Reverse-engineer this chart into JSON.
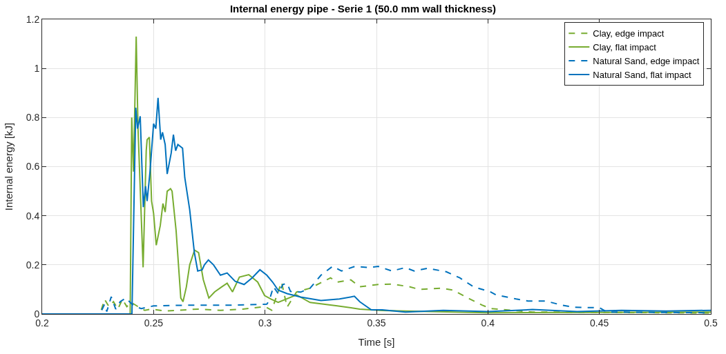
{
  "chart_data": {
    "type": "line",
    "title": "Internal energy pipe - Serie 1 (50.0 mm wall thickness)",
    "xlabel": "Time [s]",
    "ylabel": "Internal energy [kJ]",
    "xlim": [
      0.2,
      0.5
    ],
    "xticks": [
      0.2,
      0.25,
      0.3,
      0.35,
      0.4,
      0.45,
      0.5
    ],
    "ylim": [
      0,
      1.2
    ],
    "yticks": [
      0,
      0.2,
      0.4,
      0.6,
      0.8,
      1,
      1.2
    ],
    "grid": true,
    "legend": "top right",
    "series": [
      {
        "name": "Clay, edge impact",
        "color": "#77ac30",
        "line_style": "dashed",
        "x": [
          0.2,
          0.226,
          0.228,
          0.23,
          0.232,
          0.234,
          0.236,
          0.238,
          0.24,
          0.243,
          0.246,
          0.249,
          0.255,
          0.27,
          0.28,
          0.29,
          0.3,
          0.303,
          0.3074,
          0.3099,
          0.3141,
          0.3202,
          0.3294,
          0.3324,
          0.3385,
          0.3425,
          0.3508,
          0.3569,
          0.3648,
          0.3691,
          0.3791,
          0.3843,
          0.3913,
          0.3974,
          0.4014,
          0.42,
          0.5
        ],
        "values": [
          0,
          0,
          0.06,
          0.03,
          0.05,
          0.02,
          0.06,
          0.03,
          0.047,
          0.03,
          0.015,
          0.02,
          0.012,
          0.02,
          0.015,
          0.02,
          0.03,
          0.015,
          0.13,
          0.028,
          0.089,
          0.105,
          0.147,
          0.13,
          0.139,
          0.111,
          0.12,
          0.122,
          0.111,
          0.1,
          0.105,
          0.097,
          0.064,
          0.036,
          0.022,
          0.008,
          0.004
        ]
      },
      {
        "name": "Clay, flat impact",
        "color": "#77ac30",
        "line_style": "solid",
        "x": [
          0.2,
          0.2395,
          0.2402,
          0.241,
          0.2422,
          0.243,
          0.2453,
          0.2467,
          0.2471,
          0.2481,
          0.2491,
          0.25,
          0.2512,
          0.253,
          0.2542,
          0.2552,
          0.2561,
          0.2576,
          0.2583,
          0.2601,
          0.2622,
          0.2632,
          0.2647,
          0.2662,
          0.2684,
          0.2702,
          0.2723,
          0.2748,
          0.2774,
          0.2805,
          0.283,
          0.2854,
          0.2885,
          0.2927,
          0.2967,
          0.2998,
          0.3028,
          0.3059,
          0.3141,
          0.3202,
          0.3324,
          0.3425,
          0.3526,
          0.4,
          0.5
        ],
        "values": [
          0,
          0,
          0.8,
          0.58,
          1.13,
          0.76,
          0.19,
          0.665,
          0.71,
          0.72,
          0.46,
          0.41,
          0.28,
          0.36,
          0.45,
          0.415,
          0.5,
          0.51,
          0.5,
          0.34,
          0.065,
          0.05,
          0.11,
          0.2,
          0.26,
          0.25,
          0.14,
          0.065,
          0.09,
          0.11,
          0.125,
          0.09,
          0.15,
          0.16,
          0.13,
          0.075,
          0.06,
          0.047,
          0.078,
          0.047,
          0.033,
          0.02,
          0.014,
          0.005,
          0.008
        ]
      },
      {
        "name": "Natural Sand, edge impact",
        "color": "#0072bd",
        "line_style": "dashed",
        "x": [
          0.2,
          0.226,
          0.228,
          0.229,
          0.231,
          0.233,
          0.235,
          0.2375,
          0.2403,
          0.2425,
          0.2445,
          0.25,
          0.2662,
          0.2866,
          0.3008,
          0.3019,
          0.3038,
          0.3059,
          0.308,
          0.3099,
          0.3114,
          0.316,
          0.3202,
          0.3251,
          0.3303,
          0.3343,
          0.3404,
          0.3465,
          0.3508,
          0.3569,
          0.363,
          0.3669,
          0.373,
          0.3813,
          0.3874,
          0.3935,
          0.4014,
          0.4036,
          0.4127,
          0.4179,
          0.4258,
          0.4332,
          0.438,
          0.4502,
          0.4533,
          0.5
        ],
        "values": [
          0,
          0,
          0.04,
          0.01,
          0.07,
          0.02,
          0.05,
          0.065,
          0.04,
          0.028,
          0.022,
          0.033,
          0.036,
          0.036,
          0.04,
          0.055,
          0.111,
          0.083,
          0.12,
          0.125,
          0.092,
          0.089,
          0.105,
          0.158,
          0.194,
          0.175,
          0.194,
          0.189,
          0.194,
          0.175,
          0.189,
          0.175,
          0.186,
          0.172,
          0.147,
          0.111,
          0.089,
          0.078,
          0.061,
          0.053,
          0.053,
          0.036,
          0.028,
          0.025,
          0.008,
          0.005
        ]
      },
      {
        "name": "Natural Sand, flat impact",
        "color": "#0072bd",
        "line_style": "solid",
        "x": [
          0.2,
          0.2403,
          0.242,
          0.2428,
          0.244,
          0.2454,
          0.2464,
          0.2471,
          0.2484,
          0.25,
          0.251,
          0.252,
          0.2532,
          0.254,
          0.2552,
          0.2561,
          0.2579,
          0.2589,
          0.2599,
          0.2609,
          0.263,
          0.264,
          0.2662,
          0.2683,
          0.2698,
          0.2718,
          0.2728,
          0.2746,
          0.2769,
          0.28,
          0.283,
          0.2866,
          0.2906,
          0.2942,
          0.2977,
          0.3008,
          0.3034,
          0.3059,
          0.3099,
          0.316,
          0.3251,
          0.3334,
          0.3401,
          0.3425,
          0.3477,
          0.3526,
          0.363,
          0.38,
          0.4,
          0.42,
          0.44,
          0.46,
          0.48,
          0.5
        ],
        "values": [
          0,
          0,
          0.84,
          0.755,
          0.805,
          0.435,
          0.52,
          0.46,
          0.58,
          0.775,
          0.755,
          0.88,
          0.71,
          0.74,
          0.69,
          0.57,
          0.655,
          0.73,
          0.665,
          0.69,
          0.675,
          0.555,
          0.425,
          0.25,
          0.175,
          0.18,
          0.2,
          0.22,
          0.2,
          0.158,
          0.167,
          0.133,
          0.12,
          0.147,
          0.18,
          0.158,
          0.13,
          0.097,
          0.083,
          0.069,
          0.055,
          0.061,
          0.072,
          0.05,
          0.017,
          0.017,
          0.008,
          0.015,
          0.01,
          0.018,
          0.01,
          0.015,
          0.012,
          0.015
        ]
      }
    ]
  }
}
